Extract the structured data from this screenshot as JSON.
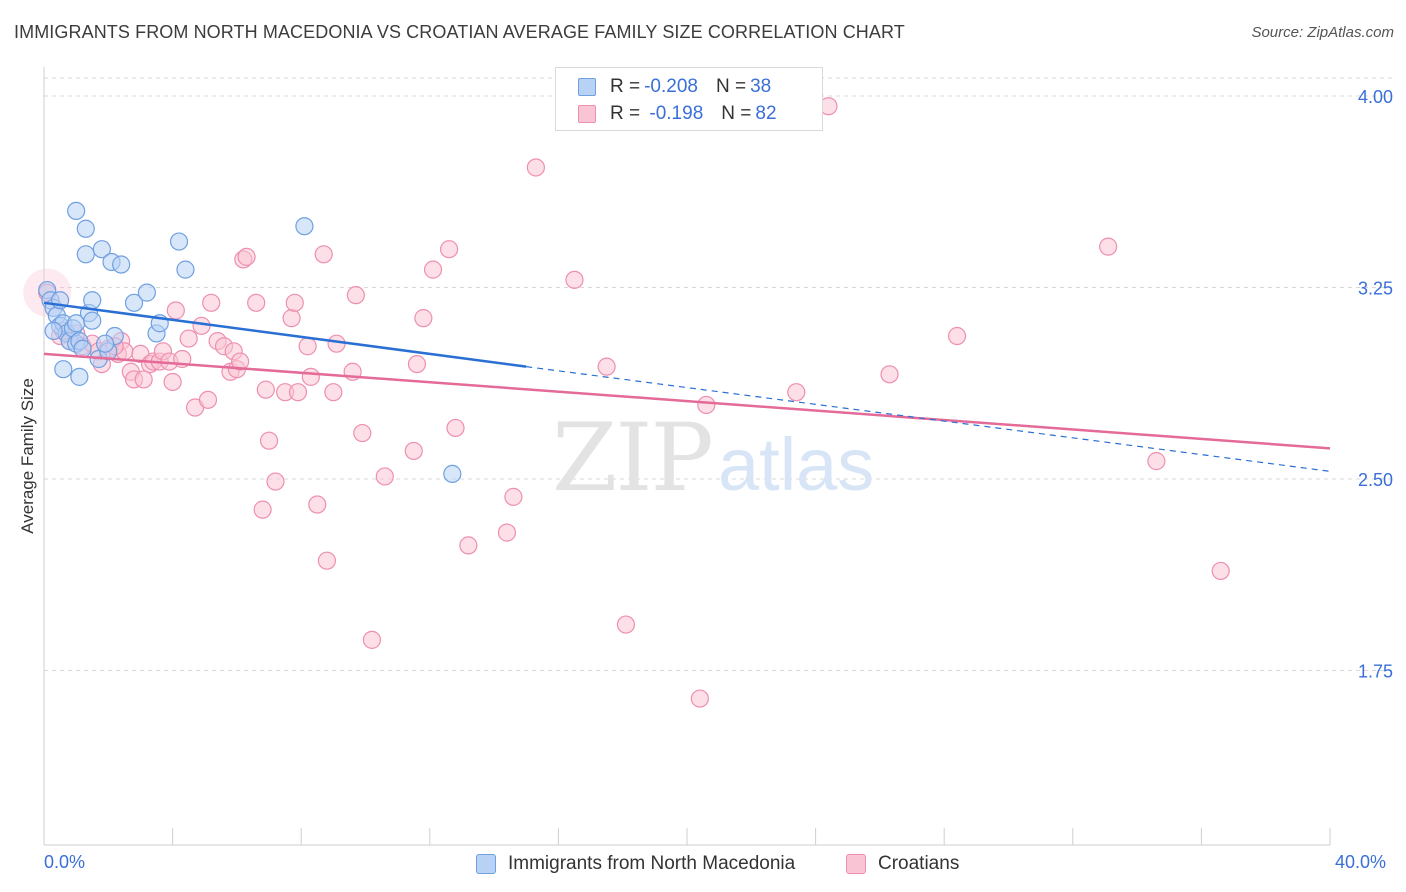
{
  "title": "IMMIGRANTS FROM NORTH MACEDONIA VS CROATIAN AVERAGE FAMILY SIZE CORRELATION CHART",
  "source": "Source: ZipAtlas.com",
  "watermark": {
    "zip": "ZIP",
    "atlas": "atlas"
  },
  "colors": {
    "blue_fill": "#b8d2f5",
    "blue_stroke": "#6fa0e0",
    "blue_line": "#2a6fd4",
    "pink_fill": "#f9c4d4",
    "pink_stroke": "#ee8fb0",
    "pink_line": "#e46a98",
    "axis_text": "#3a6fd8",
    "grid": "#d8d8d8"
  },
  "legend": {
    "rows": [
      {
        "r_label": "R = ",
        "r_value": "-0.208",
        "n_label": "N = ",
        "n_value": "38"
      },
      {
        "r_label": "R = ",
        "r_value": " -0.198",
        "n_label": "N = ",
        "n_value": "82"
      }
    ]
  },
  "chart_data": {
    "type": "scatter",
    "title": "IMMIGRANTS FROM NORTH MACEDONIA VS CROATIAN AVERAGE FAMILY SIZE CORRELATION CHART",
    "xlabel": "",
    "ylabel": "Average Family Size",
    "xlim": [
      0,
      40
    ],
    "ylim": [
      1.2,
      4.15
    ],
    "x_tick_labels": [
      "0.0%",
      "40.0%"
    ],
    "y_ticks": [
      1.75,
      2.5,
      3.25,
      4.0
    ],
    "y_tick_labels": [
      "1.75",
      "2.50",
      "3.25",
      "4.00"
    ],
    "grid": true,
    "legend_position": "bottom",
    "series": [
      {
        "name": "Immigrants from North Macedonia",
        "color": "#b8d2f5",
        "trend": {
          "x": [
            0,
            15
          ],
          "y": [
            3.19,
            2.94
          ],
          "dashed_to": [
            40,
            2.53
          ]
        },
        "points": [
          [
            0.1,
            3.24
          ],
          [
            0.2,
            3.2
          ],
          [
            0.3,
            3.17
          ],
          [
            0.4,
            3.14
          ],
          [
            0.5,
            3.2
          ],
          [
            0.5,
            3.1
          ],
          [
            0.6,
            3.11
          ],
          [
            0.6,
            2.93
          ],
          [
            0.7,
            3.07
          ],
          [
            0.8,
            3.04
          ],
          [
            0.9,
            3.09
          ],
          [
            1.0,
            3.03
          ],
          [
            1.0,
            3.11
          ],
          [
            1.1,
            2.9
          ],
          [
            1.1,
            3.04
          ],
          [
            1.2,
            3.01
          ],
          [
            1.3,
            3.38
          ],
          [
            1.3,
            3.48
          ],
          [
            1.4,
            3.15
          ],
          [
            1.5,
            3.12
          ],
          [
            1.5,
            3.2
          ],
          [
            1.0,
            3.55
          ],
          [
            1.8,
            3.4
          ],
          [
            2.1,
            3.35
          ],
          [
            2.4,
            3.34
          ],
          [
            1.7,
            2.97
          ],
          [
            2.0,
            3.0
          ],
          [
            2.2,
            3.06
          ],
          [
            2.8,
            3.19
          ],
          [
            3.2,
            3.23
          ],
          [
            3.5,
            3.07
          ],
          [
            3.6,
            3.11
          ],
          [
            4.2,
            3.43
          ],
          [
            4.4,
            3.32
          ],
          [
            8.1,
            3.49
          ],
          [
            12.7,
            2.52
          ],
          [
            0.3,
            3.08
          ],
          [
            1.9,
            3.03
          ]
        ]
      },
      {
        "name": "Croatians",
        "color": "#f9c4d4",
        "trend": {
          "x": [
            0,
            40
          ],
          "y": [
            2.99,
            2.62
          ]
        },
        "points": [
          [
            0.1,
            3.23
          ],
          [
            0.5,
            3.06
          ],
          [
            0.8,
            3.04
          ],
          [
            1.0,
            3.07
          ],
          [
            1.2,
            3.02
          ],
          [
            1.5,
            3.03
          ],
          [
            1.7,
            3.0
          ],
          [
            1.8,
            2.95
          ],
          [
            2.0,
            3.01
          ],
          [
            2.3,
            2.99
          ],
          [
            2.4,
            3.04
          ],
          [
            2.5,
            3.0
          ],
          [
            2.7,
            2.92
          ],
          [
            2.8,
            2.89
          ],
          [
            3.0,
            2.99
          ],
          [
            3.1,
            2.89
          ],
          [
            3.3,
            2.95
          ],
          [
            3.4,
            2.96
          ],
          [
            3.6,
            2.96
          ],
          [
            3.7,
            3.0
          ],
          [
            3.9,
            2.96
          ],
          [
            4.0,
            2.88
          ],
          [
            4.1,
            3.16
          ],
          [
            4.3,
            2.97
          ],
          [
            4.5,
            3.05
          ],
          [
            4.7,
            2.78
          ],
          [
            4.9,
            3.1
          ],
          [
            5.1,
            2.81
          ],
          [
            5.2,
            3.19
          ],
          [
            5.4,
            3.04
          ],
          [
            5.6,
            3.02
          ],
          [
            5.8,
            2.92
          ],
          [
            5.9,
            3.0
          ],
          [
            6.0,
            2.93
          ],
          [
            6.1,
            2.96
          ],
          [
            6.2,
            3.36
          ],
          [
            6.3,
            3.37
          ],
          [
            6.6,
            3.19
          ],
          [
            6.8,
            2.38
          ],
          [
            6.9,
            2.85
          ],
          [
            7.0,
            2.65
          ],
          [
            7.2,
            2.49
          ],
          [
            7.5,
            2.84
          ],
          [
            7.7,
            3.13
          ],
          [
            7.8,
            3.19
          ],
          [
            7.9,
            2.84
          ],
          [
            8.2,
            3.02
          ],
          [
            8.3,
            2.9
          ],
          [
            8.5,
            2.4
          ],
          [
            8.7,
            3.38
          ],
          [
            8.8,
            2.18
          ],
          [
            9.0,
            2.84
          ],
          [
            9.1,
            3.03
          ],
          [
            9.6,
            2.92
          ],
          [
            9.7,
            3.22
          ],
          [
            9.9,
            2.68
          ],
          [
            10.2,
            1.87
          ],
          [
            10.6,
            2.51
          ],
          [
            11.5,
            2.61
          ],
          [
            11.6,
            2.95
          ],
          [
            11.8,
            3.13
          ],
          [
            12.1,
            3.32
          ],
          [
            12.6,
            3.4
          ],
          [
            12.8,
            2.7
          ],
          [
            13.2,
            2.24
          ],
          [
            14.4,
            2.29
          ],
          [
            14.6,
            2.43
          ],
          [
            15.3,
            3.72
          ],
          [
            16.5,
            3.28
          ],
          [
            17.5,
            2.94
          ],
          [
            18.1,
            1.93
          ],
          [
            20.4,
            1.64
          ],
          [
            20.6,
            2.79
          ],
          [
            23.4,
            2.84
          ],
          [
            24.4,
            3.96
          ],
          [
            26.3,
            2.91
          ],
          [
            28.4,
            3.06
          ],
          [
            33.1,
            3.41
          ],
          [
            34.6,
            2.57
          ],
          [
            36.6,
            2.14
          ],
          [
            0.6,
            3.08
          ],
          [
            2.2,
            3.02
          ]
        ]
      }
    ]
  }
}
